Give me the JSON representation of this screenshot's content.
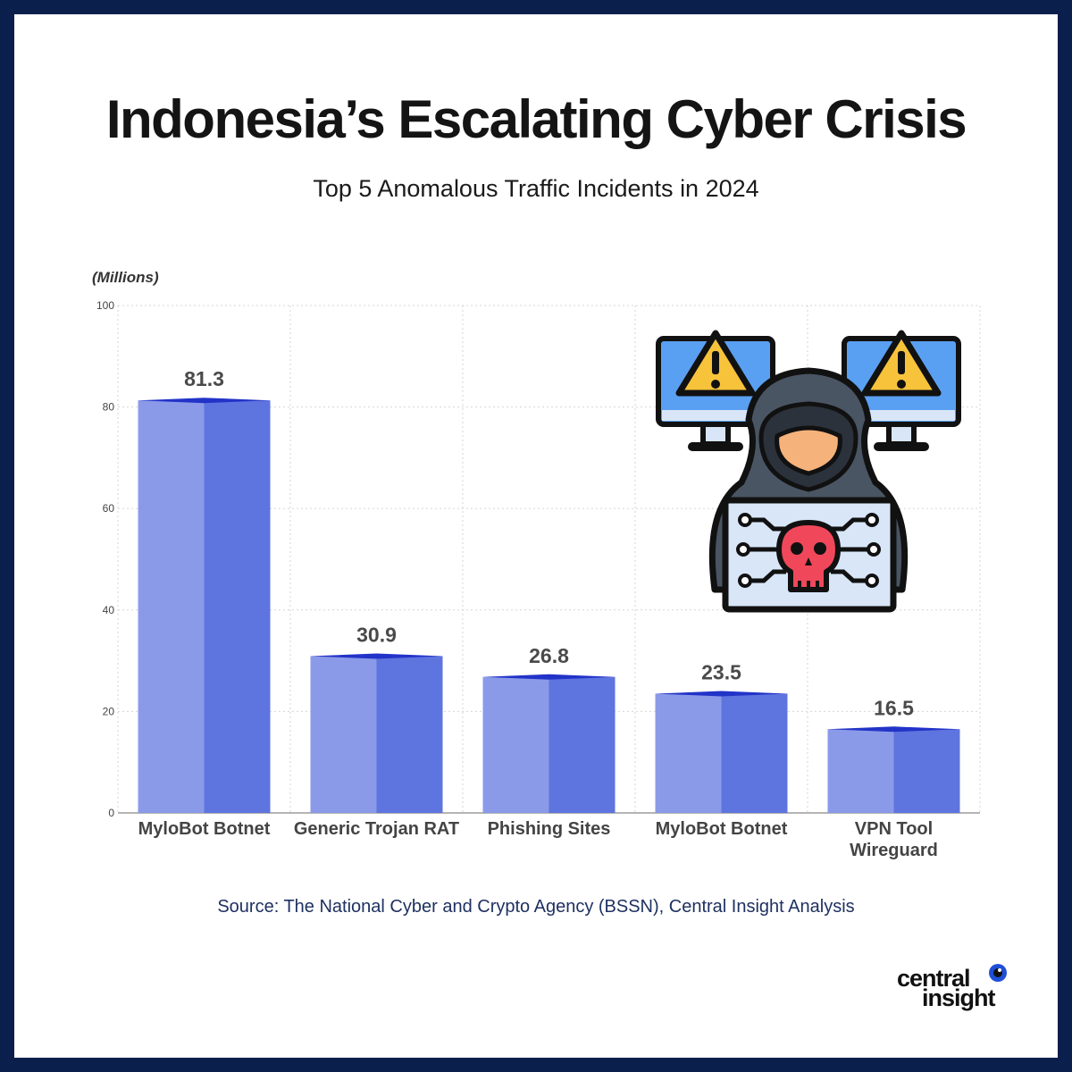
{
  "title": "Indonesia’s Escalating Cyber Crisis",
  "subtitle": "Top 5 Anomalous Traffic Incidents in 2024",
  "source": "Source: The National Cyber and Crypto Agency (BSSN), Central Insight Analysis",
  "logo": {
    "line1": "central",
    "line2": "insight"
  },
  "colors": {
    "border": "#0b1f4d",
    "bar_light": "#8b9ae8",
    "bar_dark": "#5e74de",
    "bar_top": "#2233c8",
    "value_label": "#4a4a4a",
    "category_label": "#444444"
  },
  "illustration_icon": "hacker-with-warning-monitors-icon",
  "chart_data": {
    "type": "bar",
    "unit_label": "(Millions)",
    "categories": [
      [
        "MyloBot Botnet"
      ],
      [
        "Generic Trojan RAT"
      ],
      [
        "Phishing Sites"
      ],
      [
        "MyloBot Botnet"
      ],
      [
        "VPN Tool",
        "Wireguard"
      ]
    ],
    "values": [
      81.3,
      30.9,
      26.8,
      23.5,
      16.5
    ],
    "value_labels": [
      "81.3",
      "30.9",
      "26.8",
      "23.5",
      "16.5"
    ],
    "ylim": [
      0,
      100
    ],
    "yticks": [
      0,
      20,
      40,
      60,
      80,
      100
    ],
    "grid": true
  }
}
